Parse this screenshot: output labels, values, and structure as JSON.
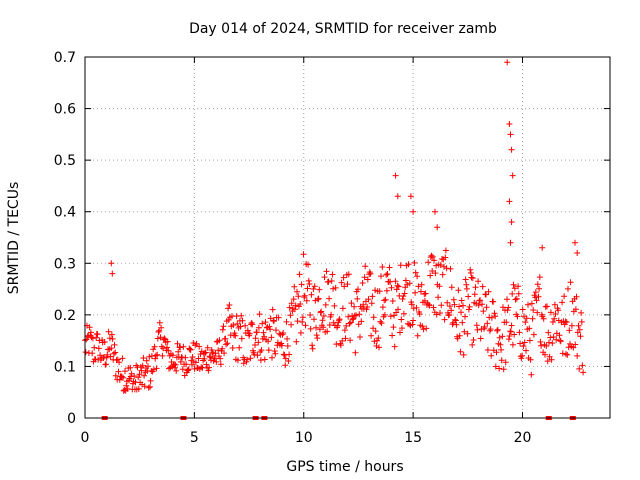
{
  "chart_data": {
    "type": "scatter",
    "title": "Day 014 of 2024, SRMTID for receiver zamb",
    "xlabel": "GPS time / hours",
    "ylabel": "SRMTID / TECUs",
    "xlim": [
      0,
      24
    ],
    "ylim": [
      0,
      0.7
    ],
    "xticks": [
      0,
      5,
      10,
      15,
      20
    ],
    "yticks": [
      0,
      0.1,
      0.2,
      0.3,
      0.4,
      0.5,
      0.6,
      0.7
    ],
    "xtick_labels": [
      "0",
      "5",
      "10",
      "15",
      "20"
    ],
    "ytick_labels": [
      "0",
      "0.1",
      "0.2",
      "0.3",
      "0.4",
      "0.5",
      "0.6",
      "0.7"
    ],
    "grid": true,
    "marker": "+",
    "color": "#ff0000",
    "series": [
      {
        "name": "SRMTID",
        "approx_trend": [
          [
            0.0,
            0.14
          ],
          [
            0.2,
            0.15
          ],
          [
            0.4,
            0.13
          ],
          [
            0.6,
            0.14
          ],
          [
            0.8,
            0.12
          ],
          [
            1.0,
            0.13
          ],
          [
            1.2,
            0.14
          ],
          [
            1.4,
            0.11
          ],
          [
            1.6,
            0.09
          ],
          [
            1.8,
            0.08
          ],
          [
            2.0,
            0.075
          ],
          [
            2.2,
            0.07
          ],
          [
            2.4,
            0.07
          ],
          [
            2.6,
            0.08
          ],
          [
            2.8,
            0.085
          ],
          [
            3.0,
            0.09
          ],
          [
            3.2,
            0.12
          ],
          [
            3.4,
            0.15
          ],
          [
            3.6,
            0.15
          ],
          [
            3.8,
            0.12
          ],
          [
            4.0,
            0.11
          ],
          [
            4.2,
            0.115
          ],
          [
            4.4,
            0.12
          ],
          [
            4.6,
            0.11
          ],
          [
            4.8,
            0.12
          ],
          [
            5.0,
            0.12
          ],
          [
            5.2,
            0.11
          ],
          [
            5.4,
            0.11
          ],
          [
            5.6,
            0.12
          ],
          [
            5.8,
            0.12
          ],
          [
            6.0,
            0.12
          ],
          [
            6.2,
            0.13
          ],
          [
            6.4,
            0.16
          ],
          [
            6.6,
            0.17
          ],
          [
            6.8,
            0.15
          ],
          [
            7.0,
            0.16
          ],
          [
            7.2,
            0.15
          ],
          [
            7.4,
            0.13
          ],
          [
            7.6,
            0.15
          ],
          [
            7.8,
            0.17
          ],
          [
            8.0,
            0.16
          ],
          [
            8.2,
            0.15
          ],
          [
            8.4,
            0.17
          ],
          [
            8.6,
            0.16
          ],
          [
            8.8,
            0.15
          ],
          [
            9.0,
            0.14
          ],
          [
            9.2,
            0.15
          ],
          [
            9.4,
            0.17
          ],
          [
            9.6,
            0.19
          ],
          [
            9.8,
            0.22
          ],
          [
            10.0,
            0.25
          ],
          [
            10.2,
            0.23
          ],
          [
            10.4,
            0.2
          ],
          [
            10.6,
            0.21
          ],
          [
            10.8,
            0.24
          ],
          [
            11.0,
            0.22
          ],
          [
            11.2,
            0.25
          ],
          [
            11.4,
            0.22
          ],
          [
            11.6,
            0.2
          ],
          [
            11.8,
            0.21
          ],
          [
            12.0,
            0.22
          ],
          [
            12.2,
            0.2
          ],
          [
            12.4,
            0.19
          ],
          [
            12.6,
            0.21
          ],
          [
            12.8,
            0.23
          ],
          [
            13.0,
            0.22
          ],
          [
            13.2,
            0.2
          ],
          [
            13.4,
            0.2
          ],
          [
            13.6,
            0.23
          ],
          [
            13.8,
            0.25
          ],
          [
            14.0,
            0.22
          ],
          [
            14.2,
            0.2
          ],
          [
            14.4,
            0.23
          ],
          [
            14.6,
            0.26
          ],
          [
            14.8,
            0.25
          ],
          [
            15.0,
            0.24
          ],
          [
            15.2,
            0.22
          ],
          [
            15.4,
            0.2
          ],
          [
            15.6,
            0.24
          ],
          [
            15.8,
            0.27
          ],
          [
            16.0,
            0.26
          ],
          [
            16.2,
            0.24
          ],
          [
            16.4,
            0.26
          ],
          [
            16.6,
            0.25
          ],
          [
            16.8,
            0.22
          ],
          [
            17.0,
            0.19
          ],
          [
            17.2,
            0.18
          ],
          [
            17.4,
            0.2
          ],
          [
            17.6,
            0.22
          ],
          [
            17.8,
            0.2
          ],
          [
            18.0,
            0.2
          ],
          [
            18.2,
            0.19
          ],
          [
            18.4,
            0.18
          ],
          [
            18.6,
            0.17
          ],
          [
            18.8,
            0.16
          ],
          [
            19.0,
            0.15
          ],
          [
            19.2,
            0.16
          ],
          [
            19.4,
            0.18
          ],
          [
            19.6,
            0.2
          ],
          [
            19.8,
            0.19
          ],
          [
            20.0,
            0.17
          ],
          [
            20.2,
            0.16
          ],
          [
            20.4,
            0.15
          ],
          [
            20.6,
            0.19
          ],
          [
            20.8,
            0.22
          ],
          [
            21.0,
            0.18
          ],
          [
            21.2,
            0.16
          ],
          [
            21.4,
            0.19
          ],
          [
            21.6,
            0.2
          ],
          [
            21.8,
            0.17
          ],
          [
            22.0,
            0.18
          ],
          [
            22.2,
            0.21
          ],
          [
            22.4,
            0.19
          ],
          [
            22.6,
            0.16
          ],
          [
            22.8,
            0.15
          ]
        ],
        "spikes": [
          [
            1.2,
            0.3
          ],
          [
            1.25,
            0.28
          ],
          [
            14.2,
            0.47
          ],
          [
            14.3,
            0.43
          ],
          [
            14.9,
            0.43
          ],
          [
            15.0,
            0.4
          ],
          [
            16.0,
            0.4
          ],
          [
            16.1,
            0.37
          ],
          [
            19.3,
            0.69
          ],
          [
            19.4,
            0.57
          ],
          [
            19.45,
            0.55
          ],
          [
            19.5,
            0.52
          ],
          [
            19.55,
            0.47
          ],
          [
            19.4,
            0.42
          ],
          [
            19.5,
            0.38
          ],
          [
            19.45,
            0.34
          ],
          [
            20.9,
            0.33
          ],
          [
            22.4,
            0.34
          ],
          [
            22.5,
            0.32
          ]
        ],
        "gap_markers_x": [
          0.9,
          4.5,
          7.8,
          8.2,
          21.2,
          22.3
        ]
      }
    ]
  }
}
